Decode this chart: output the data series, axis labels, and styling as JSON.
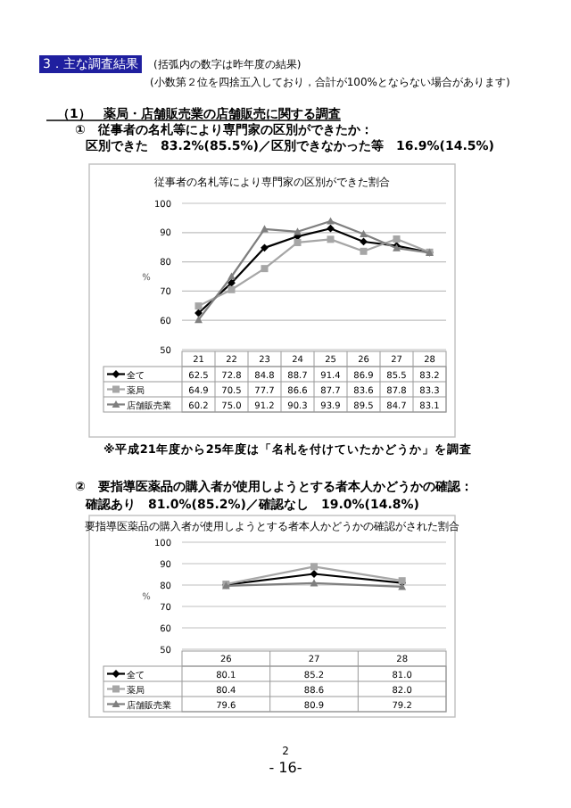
{
  "chart_data": [
    {
      "type": "line",
      "title": "従事者の名札等により専門家の区別ができた割合",
      "ylabel": "%",
      "annotations": [
        "3．主な調査結果",
        "(括弧内の数字は昨年度の結果)",
        "(小数第２位を四捨五入しており，合計が100%とならない場合があります)",
        "（1）　薬局・店舗販売業の店舗販売に関する調査",
        "①　従事者の名札等により専門家の区別ができたか：",
        "区別できた　83.2%(85.5%)／区別できなかった等　16.9%(14.5%)",
        "※平成21年度から25年度は「名札を付けていたかどうか」を調査"
      ],
      "categories": [
        "21",
        "22",
        "23",
        "24",
        "25",
        "26",
        "27",
        "28"
      ],
      "series": [
        {
          "name": "全て",
          "color": "#000000",
          "marker": "diamond",
          "values": [
            62.5,
            72.8,
            84.8,
            88.7,
            91.4,
            86.9,
            85.5,
            83.2
          ],
          "value_labels": [
            "62.5",
            "72.8",
            "84.8",
            "88.7",
            "91.4",
            "86.9",
            "85.5",
            "83.2"
          ]
        },
        {
          "name": "薬局",
          "color": "#a6a6a6",
          "marker": "square",
          "values": [
            64.9,
            70.5,
            77.7,
            86.6,
            87.7,
            83.6,
            87.8,
            83.3
          ],
          "value_labels": [
            "64.9",
            "70.5",
            "77.7",
            "86.6",
            "87.7",
            "83.6",
            "87.8",
            "83.3"
          ]
        },
        {
          "name": "店舗販売業",
          "color": "#7f7f7f",
          "marker": "triangle",
          "values": [
            60.2,
            75.0,
            91.2,
            90.3,
            93.9,
            89.5,
            84.7,
            83.1
          ],
          "value_labels": [
            "60.2",
            "75.0",
            "91.2",
            "90.3",
            "93.9",
            "89.5",
            "84.7",
            "83.1"
          ]
        }
      ],
      "ylim": [
        50,
        100
      ],
      "yticks": [
        50,
        60,
        70,
        80,
        90,
        100
      ],
      "grid": "y",
      "legend": "bottom"
    },
    {
      "type": "line",
      "title": "要指導医薬品の購入者が使用しようとする者本人かどうかの確認がされた割合",
      "ylabel": "%",
      "annotations": [
        "②　要指導医薬品の購入者が使用しようとする者本人かどうかの確認：",
        "確認あり　81.0%(85.2%)／確認なし　19.0%(14.8%)",
        "2",
        "- 16-"
      ],
      "categories": [
        "26",
        "27",
        "28"
      ],
      "series": [
        {
          "name": "全て",
          "color": "#000000",
          "marker": "diamond",
          "values": [
            80.1,
            85.2,
            81.0
          ],
          "value_labels": [
            "80.1",
            "85.2",
            "81.0"
          ]
        },
        {
          "name": "薬局",
          "color": "#a6a6a6",
          "marker": "square",
          "values": [
            80.4,
            88.6,
            82.0
          ],
          "value_labels": [
            "80.4",
            "88.6",
            "82.0"
          ]
        },
        {
          "name": "店舗販売業",
          "color": "#7f7f7f",
          "marker": "triangle",
          "values": [
            79.6,
            80.9,
            79.2
          ],
          "value_labels": [
            "79.6",
            "80.9",
            "79.2"
          ]
        }
      ],
      "ylim": [
        50,
        100
      ],
      "yticks": [
        50,
        60,
        70,
        80,
        90,
        100
      ],
      "grid": "y",
      "legend": "bottom"
    }
  ]
}
